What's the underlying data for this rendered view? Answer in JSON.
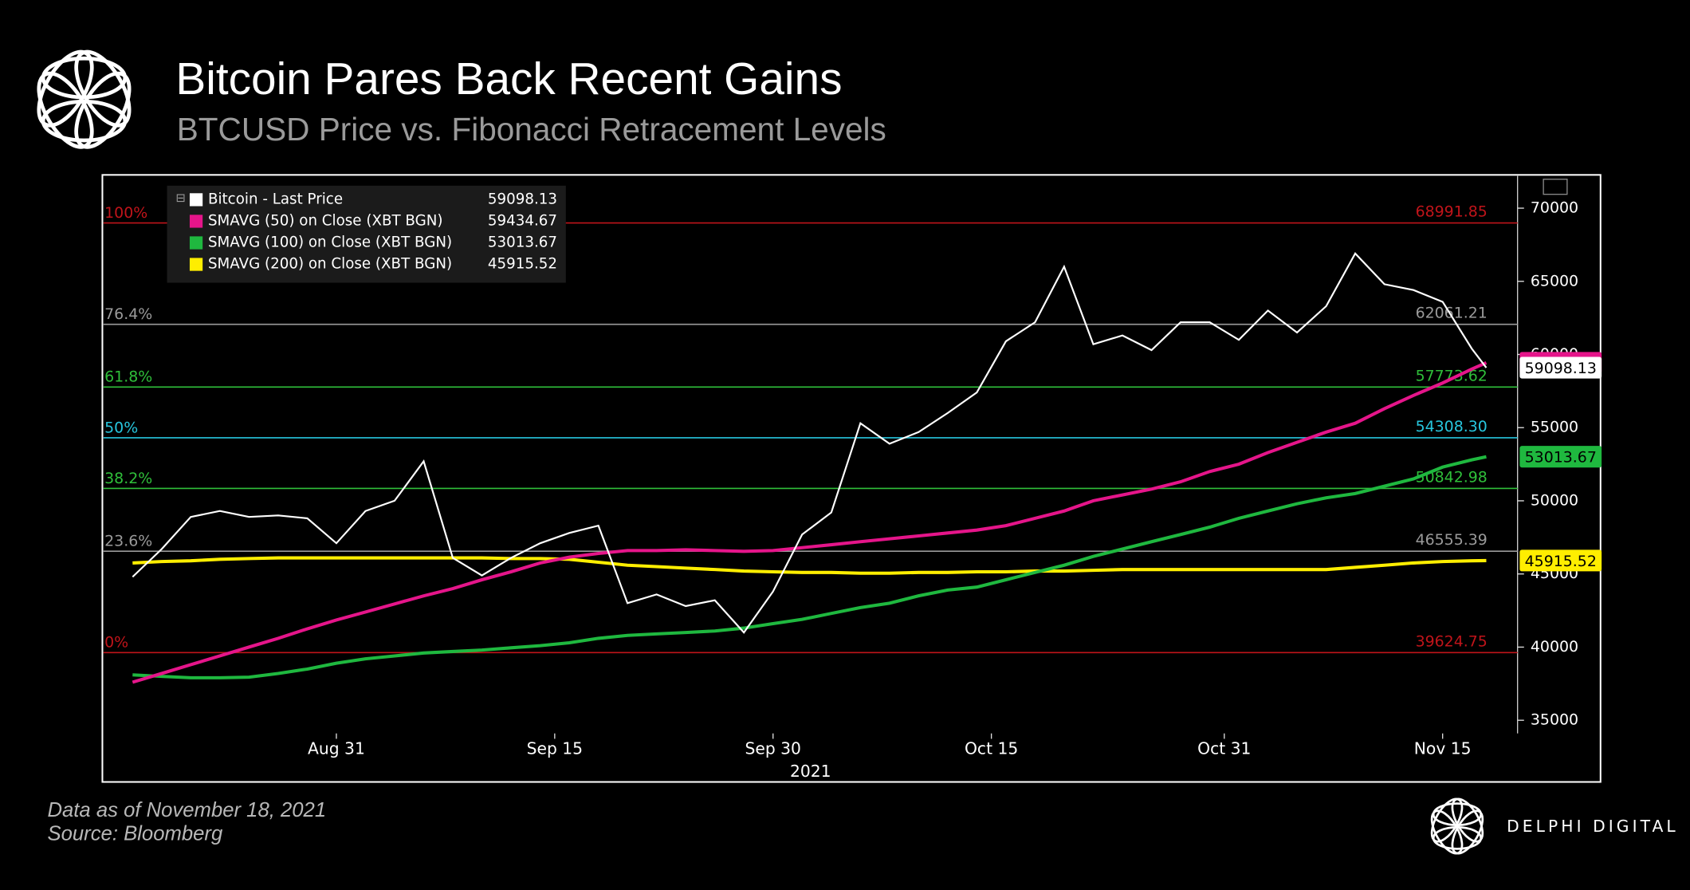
{
  "chart_data": {
    "type": "line",
    "title": "Bitcoin Pares Back Recent Gains",
    "subtitle": "BTCUSD Price vs. Fibonacci Retracement Levels",
    "x_label": "2021",
    "x": [
      "2021-08-17",
      "2021-08-19",
      "2021-08-21",
      "2021-08-23",
      "2021-08-25",
      "2021-08-27",
      "2021-08-29",
      "2021-08-31",
      "2021-09-02",
      "2021-09-04",
      "2021-09-06",
      "2021-09-08",
      "2021-09-10",
      "2021-09-12",
      "2021-09-14",
      "2021-09-16",
      "2021-09-18",
      "2021-09-20",
      "2021-09-22",
      "2021-09-24",
      "2021-09-26",
      "2021-09-28",
      "2021-09-30",
      "2021-10-02",
      "2021-10-04",
      "2021-10-06",
      "2021-10-08",
      "2021-10-10",
      "2021-10-12",
      "2021-10-14",
      "2021-10-16",
      "2021-10-18",
      "2021-10-20",
      "2021-10-22",
      "2021-10-24",
      "2021-10-26",
      "2021-10-28",
      "2021-10-30",
      "2021-11-01",
      "2021-11-03",
      "2021-11-05",
      "2021-11-07",
      "2021-11-09",
      "2021-11-11",
      "2021-11-13",
      "2021-11-15",
      "2021-11-17",
      "2021-11-18"
    ],
    "series": [
      {
        "name": "Bitcoin - Last Price",
        "color": "#ffffff",
        "values": [
          44800,
          46700,
          48900,
          49300,
          48900,
          49000,
          48800,
          47100,
          49300,
          50000,
          52700,
          46100,
          44900,
          46100,
          47100,
          47800,
          48300,
          43000,
          43600,
          42800,
          43200,
          41000,
          43800,
          47700,
          49200,
          55300,
          53900,
          54700,
          56000,
          57400,
          60900,
          62200,
          66000,
          60700,
          61300,
          60300,
          62200,
          62200,
          61000,
          63000,
          61500,
          63300,
          66900,
          64800,
          64400,
          63600,
          60400,
          59098.13
        ]
      },
      {
        "name": "SMAVG (50)  on Close (XBT BGN)",
        "color": "#e5158a",
        "values": [
          37600,
          38200,
          38800,
          39400,
          40000,
          40600,
          41250,
          41850,
          42400,
          42950,
          43500,
          44000,
          44600,
          45150,
          45750,
          46150,
          46400,
          46600,
          46600,
          46650,
          46600,
          46550,
          46600,
          46800,
          47000,
          47200,
          47400,
          47600,
          47800,
          48000,
          48300,
          48800,
          49300,
          50000,
          50400,
          50800,
          51300,
          52000,
          52500,
          53300,
          54000,
          54700,
          55300,
          56300,
          57200,
          58050,
          59000,
          59434.67
        ]
      },
      {
        "name": "SMAVG (100)  on Close (XBT BGN)",
        "color": "#1fb83f",
        "values": [
          38100,
          38000,
          37900,
          37900,
          37950,
          38200,
          38500,
          38900,
          39200,
          39400,
          39600,
          39700,
          39800,
          39950,
          40100,
          40300,
          40600,
          40800,
          40900,
          41000,
          41100,
          41300,
          41600,
          41900,
          42300,
          42700,
          43000,
          43500,
          43900,
          44100,
          44600,
          45100,
          45600,
          46200,
          46700,
          47200,
          47700,
          48200,
          48800,
          49300,
          49800,
          50200,
          50500,
          51000,
          51500,
          52300,
          52800,
          53013.67
        ]
      },
      {
        "name": "SMAVG (200)  on Close (XBT BGN)",
        "color": "#ffee00",
        "values": [
          45750,
          45850,
          45900,
          46000,
          46050,
          46100,
          46100,
          46100,
          46100,
          46100,
          46100,
          46100,
          46100,
          46050,
          46050,
          46000,
          45800,
          45600,
          45500,
          45400,
          45300,
          45200,
          45150,
          45100,
          45100,
          45050,
          45050,
          45100,
          45100,
          45150,
          45150,
          45200,
          45200,
          45250,
          45300,
          45300,
          45300,
          45300,
          45300,
          45300,
          45300,
          45300,
          45450,
          45600,
          45750,
          45850,
          45900,
          45915.52
        ]
      }
    ],
    "fib_levels": [
      {
        "label": "100%",
        "value": 68991.85,
        "color": "#c0141a"
      },
      {
        "label": "76.4%",
        "value": 62061.21,
        "color": "#9a9a9a"
      },
      {
        "label": "61.8%",
        "value": 57773.62,
        "color": "#2fbf3a"
      },
      {
        "label": "50%",
        "value": 54308.3,
        "value_label": "54308.30",
        "color": "#27c6de"
      },
      {
        "label": "38.2%",
        "value": 50842.98,
        "color": "#2fbf3a"
      },
      {
        "label": "23.6%",
        "value": 46555.39,
        "color": "#9a9a9a"
      },
      {
        "label": "0%",
        "value": 39624.75,
        "color": "#c0141a"
      }
    ],
    "xlim": [
      "2021-08-15",
      "2021-11-20"
    ],
    "xticks": [
      {
        "value": "2021-08-31",
        "label": "Aug 31"
      },
      {
        "value": "2021-09-15",
        "label": "Sep 15"
      },
      {
        "value": "2021-09-30",
        "label": "Sep 30"
      },
      {
        "value": "2021-10-15",
        "label": "Oct 15"
      },
      {
        "value": "2021-10-31",
        "label": "Oct 31"
      },
      {
        "value": "2021-11-15",
        "label": "Nov 15"
      }
    ],
    "ylim": [
      31300,
      72200
    ],
    "yticks": [
      35000,
      40000,
      45000,
      50000,
      55000,
      60000,
      65000,
      70000
    ]
  },
  "footnotes": [
    "Data as of November 18, 2021",
    "Source: Bloomberg"
  ],
  "brand": "DELPHI DIGITAL"
}
